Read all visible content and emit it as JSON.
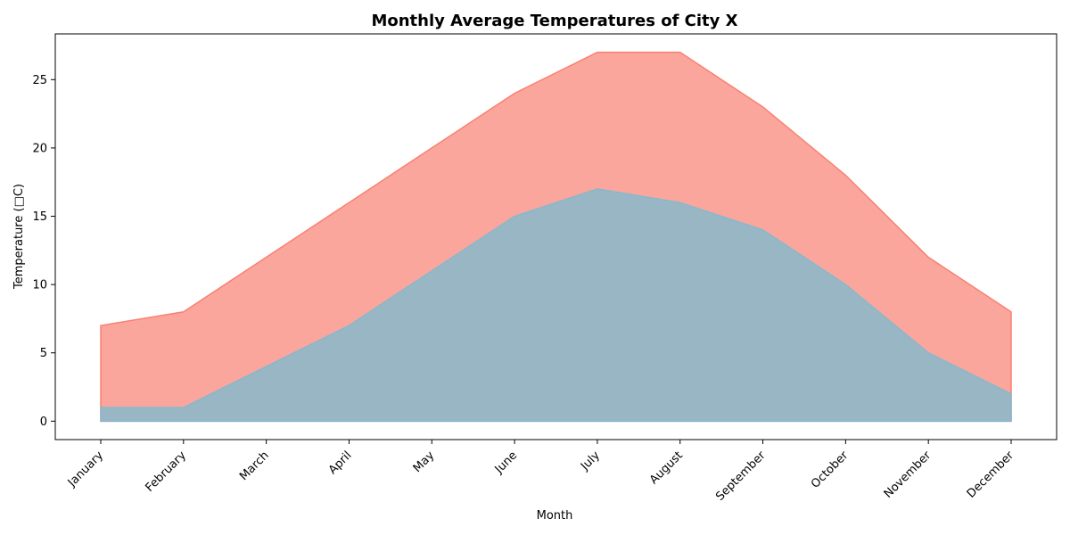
{
  "chart_data": {
    "type": "area",
    "title": "Monthly Average Temperatures of City X",
    "xlabel": "Month",
    "ylabel": "Temperature (□C)",
    "categories": [
      "January",
      "February",
      "March",
      "April",
      "May",
      "June",
      "July",
      "August",
      "September",
      "October",
      "November",
      "December"
    ],
    "series": [
      {
        "values": [
          7,
          8,
          12,
          16,
          20,
          24,
          27,
          27,
          23,
          18,
          12,
          8
        ],
        "color": "#FA8072"
      },
      {
        "values": [
          1,
          1,
          4,
          7,
          11,
          15,
          17,
          16,
          14,
          10,
          5,
          2
        ],
        "color": "#87B8CC"
      }
    ],
    "y_ticks": [
      0,
      5,
      10,
      15,
      20,
      25
    ],
    "ylim": [
      -1.35,
      28.35
    ],
    "grid": false,
    "legend": false
  }
}
